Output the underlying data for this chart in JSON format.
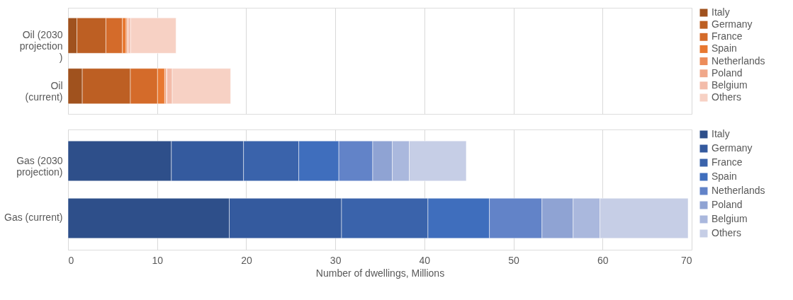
{
  "chart_data": [
    {
      "type": "bar",
      "orientation": "horizontal",
      "stacked": true,
      "categories": [
        "Oil (2030 projection)",
        "Oil (current)"
      ],
      "xlim": [
        0,
        70
      ],
      "xticks": [
        0,
        10,
        20,
        30,
        40,
        50,
        60,
        70
      ],
      "tick_labels": "y",
      "grid": "x",
      "legend": "right",
      "series": [
        {
          "name": "Italy",
          "color": "#a0521e",
          "values": [
            1.0,
            1.6
          ]
        },
        {
          "name": "Germany",
          "color": "#bd5f23",
          "values": [
            3.25,
            5.4
          ]
        },
        {
          "name": "France",
          "color": "#d46b2a",
          "values": [
            1.85,
            3.05
          ]
        },
        {
          "name": "Spain",
          "color": "#e87830",
          "values": [
            0.42,
            0.8
          ]
        },
        {
          "name": "Netherlands",
          "color": "#ec8c5a",
          "values": [
            0.14,
            0.15
          ]
        },
        {
          "name": "Poland",
          "color": "#f0a88a",
          "values": [
            0.11,
            0.1
          ]
        },
        {
          "name": "Belgium",
          "color": "#f3bcaa",
          "values": [
            0.25,
            0.6
          ]
        },
        {
          "name": "Others",
          "color": "#f7d1c4",
          "values": [
            5.1,
            6.55
          ]
        }
      ]
    },
    {
      "type": "bar",
      "orientation": "horizontal",
      "stacked": true,
      "categories": [
        "Gas (2030 projection)",
        "Gas (current)"
      ],
      "xlim": [
        0,
        70
      ],
      "xticks": [
        0,
        10,
        20,
        30,
        40,
        50,
        60,
        70
      ],
      "xlabel": "Number of dwellings, Millions",
      "grid": "x",
      "legend": "right",
      "series": [
        {
          "name": "Italy",
          "color": "#2e4f8a",
          "values": [
            11.6,
            18.1
          ]
        },
        {
          "name": "Germany",
          "color": "#345a9e",
          "values": [
            8.1,
            12.6
          ]
        },
        {
          "name": "France",
          "color": "#3a63ab",
          "values": [
            6.2,
            9.7
          ]
        },
        {
          "name": "Spain",
          "color": "#3f6ebd",
          "values": [
            4.5,
            6.9
          ]
        },
        {
          "name": "Netherlands",
          "color": "#6283c8",
          "values": [
            3.8,
            5.9
          ]
        },
        {
          "name": "Poland",
          "color": "#8fa3d3",
          "values": [
            2.2,
            3.5
          ]
        },
        {
          "name": "Belgium",
          "color": "#aab8dd",
          "values": [
            1.9,
            3.0
          ]
        },
        {
          "name": "Others",
          "color": "#c6cee6",
          "values": [
            6.4,
            9.9
          ]
        }
      ]
    }
  ]
}
